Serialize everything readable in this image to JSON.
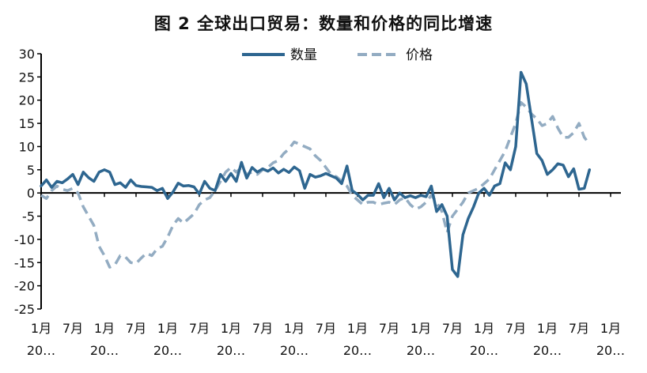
{
  "chart_data": {
    "type": "line",
    "title": "图 2 全球出口贸易：数量和价格的同比增速",
    "ylim": [
      -25,
      30
    ],
    "yticks": [
      30,
      25,
      20,
      15,
      10,
      5,
      0,
      -5,
      -10,
      -15,
      -20,
      -25
    ],
    "x_tick_labels": [
      {
        "month": "1月",
        "year": "20…"
      },
      {
        "month": "7月",
        "year": ""
      },
      {
        "month": "1月",
        "year": "20…"
      },
      {
        "month": "7月",
        "year": ""
      },
      {
        "month": "1月",
        "year": "20…"
      },
      {
        "month": "7月",
        "year": ""
      },
      {
        "month": "1月",
        "year": "20…"
      },
      {
        "month": "7月",
        "year": ""
      },
      {
        "month": "1月",
        "year": "20…"
      },
      {
        "month": "7月",
        "year": ""
      },
      {
        "month": "1月",
        "year": "20…"
      },
      {
        "month": "7月",
        "year": ""
      },
      {
        "month": "1月",
        "year": "20…"
      },
      {
        "month": "7月",
        "year": ""
      },
      {
        "month": "1月",
        "year": "20…"
      },
      {
        "month": "7月",
        "year": ""
      },
      {
        "month": "1月",
        "year": "20…"
      },
      {
        "month": "7月",
        "year": ""
      },
      {
        "month": "1月",
        "year": "20…"
      }
    ],
    "legend_position": "top",
    "series": [
      {
        "name": "数量",
        "color": "#2e6690",
        "dash": "solid",
        "values": [
          1.5,
          2.8,
          1.2,
          2.5,
          2.2,
          3.0,
          4.0,
          1.8,
          4.5,
          3.3,
          2.5,
          4.5,
          5.0,
          4.5,
          1.8,
          2.2,
          1.2,
          2.8,
          1.6,
          1.4,
          1.3,
          1.2,
          0.5,
          1.0,
          -1.2,
          0.2,
          2.1,
          1.5,
          1.6,
          1.3,
          -0.2,
          2.5,
          1.0,
          0.5,
          4.0,
          2.5,
          4.2,
          2.5,
          6.6,
          3.2,
          5.5,
          4.5,
          5.2,
          4.7,
          5.4,
          4.3,
          5.1,
          4.4,
          5.6,
          4.8,
          1.0,
          4.0,
          3.4,
          3.7,
          4.2,
          3.7,
          3.2,
          2.0,
          5.8,
          0.5,
          -0.3,
          -1.5,
          -0.5,
          -0.5,
          2.0,
          -1.0,
          1.0,
          -1.5,
          0.0,
          -1.0,
          -0.6,
          -1.0,
          -0.5,
          -0.8,
          1.5,
          -4.0,
          -2.5,
          -5.0,
          -16.5,
          -18.0,
          -9.0,
          -5.5,
          -3.0,
          0.0,
          1.0,
          -0.5,
          1.5,
          2.0,
          6.5,
          5.0,
          10.0,
          26.0,
          23.5,
          16.0,
          8.5,
          7.0,
          4.0,
          5.0,
          6.3,
          6.0,
          3.5,
          5.2,
          0.8,
          1.0,
          5.0
        ]
      },
      {
        "name": "价格",
        "color": "#93acc2",
        "dash": "dashed",
        "values": [
          -0.5,
          -1.2,
          0.5,
          1.5,
          0.8,
          0.5,
          1.0,
          0.0,
          -3.0,
          -5.0,
          -7.0,
          -11.5,
          -13.5,
          -16.0,
          -15.5,
          -13.5,
          -13.8,
          -15.0,
          -15.2,
          -14.0,
          -13.0,
          -13.5,
          -12.0,
          -11.5,
          -9.5,
          -7.0,
          -5.5,
          -6.5,
          -5.5,
          -4.5,
          -2.5,
          -1.5,
          -1.0,
          0.5,
          2.5,
          4.5,
          5.5,
          4.5,
          5.5,
          4.0,
          4.5,
          4.0,
          5.0,
          5.5,
          6.5,
          7.0,
          8.5,
          9.5,
          11.0,
          10.5,
          10.0,
          9.5,
          8.0,
          7.0,
          5.5,
          4.0,
          3.5,
          2.5,
          1.5,
          -0.5,
          -1.5,
          -2.5,
          -2.0,
          -2.0,
          -2.5,
          -2.2,
          -2.0,
          -2.5,
          -1.5,
          -1.0,
          -2.5,
          -3.5,
          -3.0,
          -2.0,
          -0.5,
          -2.0,
          -4.0,
          -8.5,
          -5.0,
          -3.5,
          -2.0,
          0.0,
          0.5,
          1.0,
          2.0,
          3.0,
          5.0,
          7.0,
          9.0,
          12.0,
          15.0,
          19.5,
          18.5,
          17.0,
          16.0,
          14.5,
          15.0,
          16.5,
          14.0,
          12.0,
          12.0,
          13.0,
          15.0,
          12.0,
          10.5
        ]
      }
    ]
  }
}
